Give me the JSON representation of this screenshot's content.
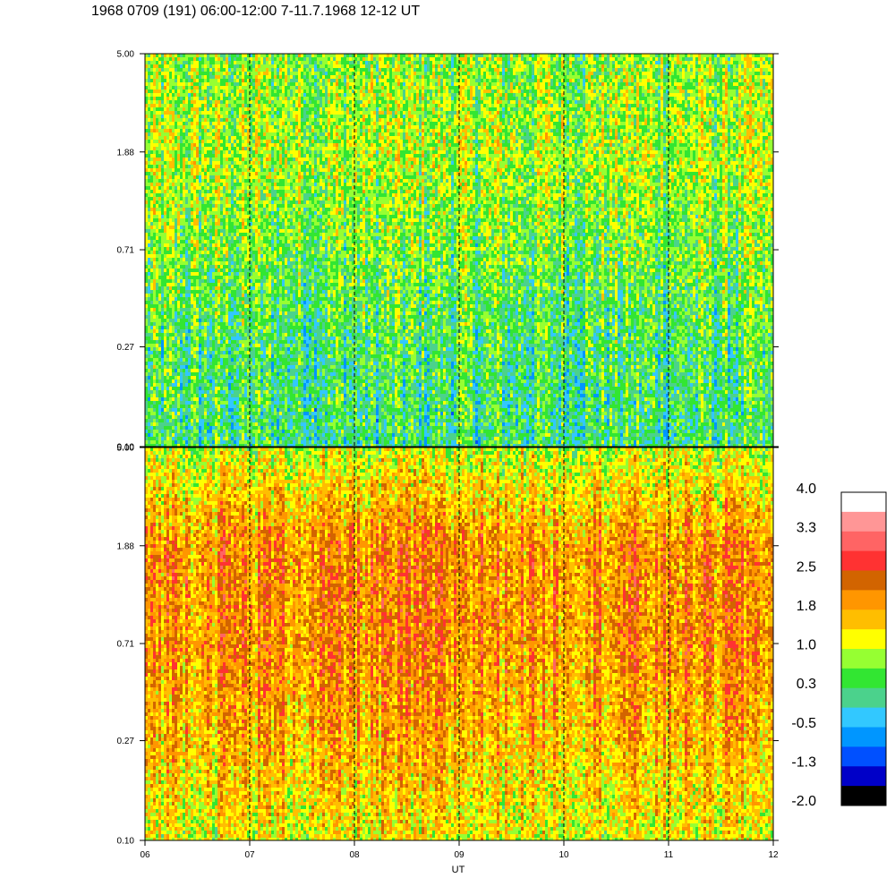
{
  "chart_data": {
    "type": "heatmap",
    "title": "1968 0709 (191) 06:00-12:00 7-11.7.1968  12-12 UT",
    "xlabel": "UT",
    "x_ticks": [
      "06",
      "07",
      "08",
      "09",
      "10",
      "11",
      "12"
    ],
    "xlim": [
      6,
      12
    ],
    "y_scale": "log",
    "ylim": [
      0.1,
      5.0
    ],
    "panels": [
      {
        "name": "upper",
        "y_ticks": [
          "5.00",
          "1.88",
          "0.71",
          "0.27",
          "0.10"
        ],
        "dominant_level_by_frequency": {
          "5.00": 0.7,
          "1.88": 0.9,
          "0.71": 0.6,
          "0.27": 0.3,
          "0.10": 0.2
        }
      },
      {
        "name": "lower",
        "y_ticks": [
          "5.00",
          "1.88",
          "0.71",
          "0.27",
          "0.10"
        ],
        "dominant_level_by_frequency": {
          "5.00": 1.0,
          "1.88": 2.0,
          "0.71": 2.0,
          "0.27": 1.7,
          "0.10": 1.2
        }
      }
    ],
    "hour_markers": [
      "07",
      "08",
      "09",
      "10",
      "11"
    ],
    "colorbar": {
      "labels": [
        "4.0",
        "3.3",
        "2.5",
        "1.8",
        "1.0",
        "0.3",
        "-0.5",
        "-1.3",
        "-2.0"
      ],
      "colors_top_to_bottom": [
        "#ffffff",
        "#ff9696",
        "#ff6464",
        "#ff3232",
        "#d26400",
        "#ff9600",
        "#ffbe00",
        "#ffff00",
        "#96ff32",
        "#32e632",
        "#4bd28c",
        "#32c8ff",
        "#0096ff",
        "#0050ff",
        "#0000c8",
        "#000000"
      ],
      "range": [
        -2.0,
        4.0
      ]
    }
  }
}
